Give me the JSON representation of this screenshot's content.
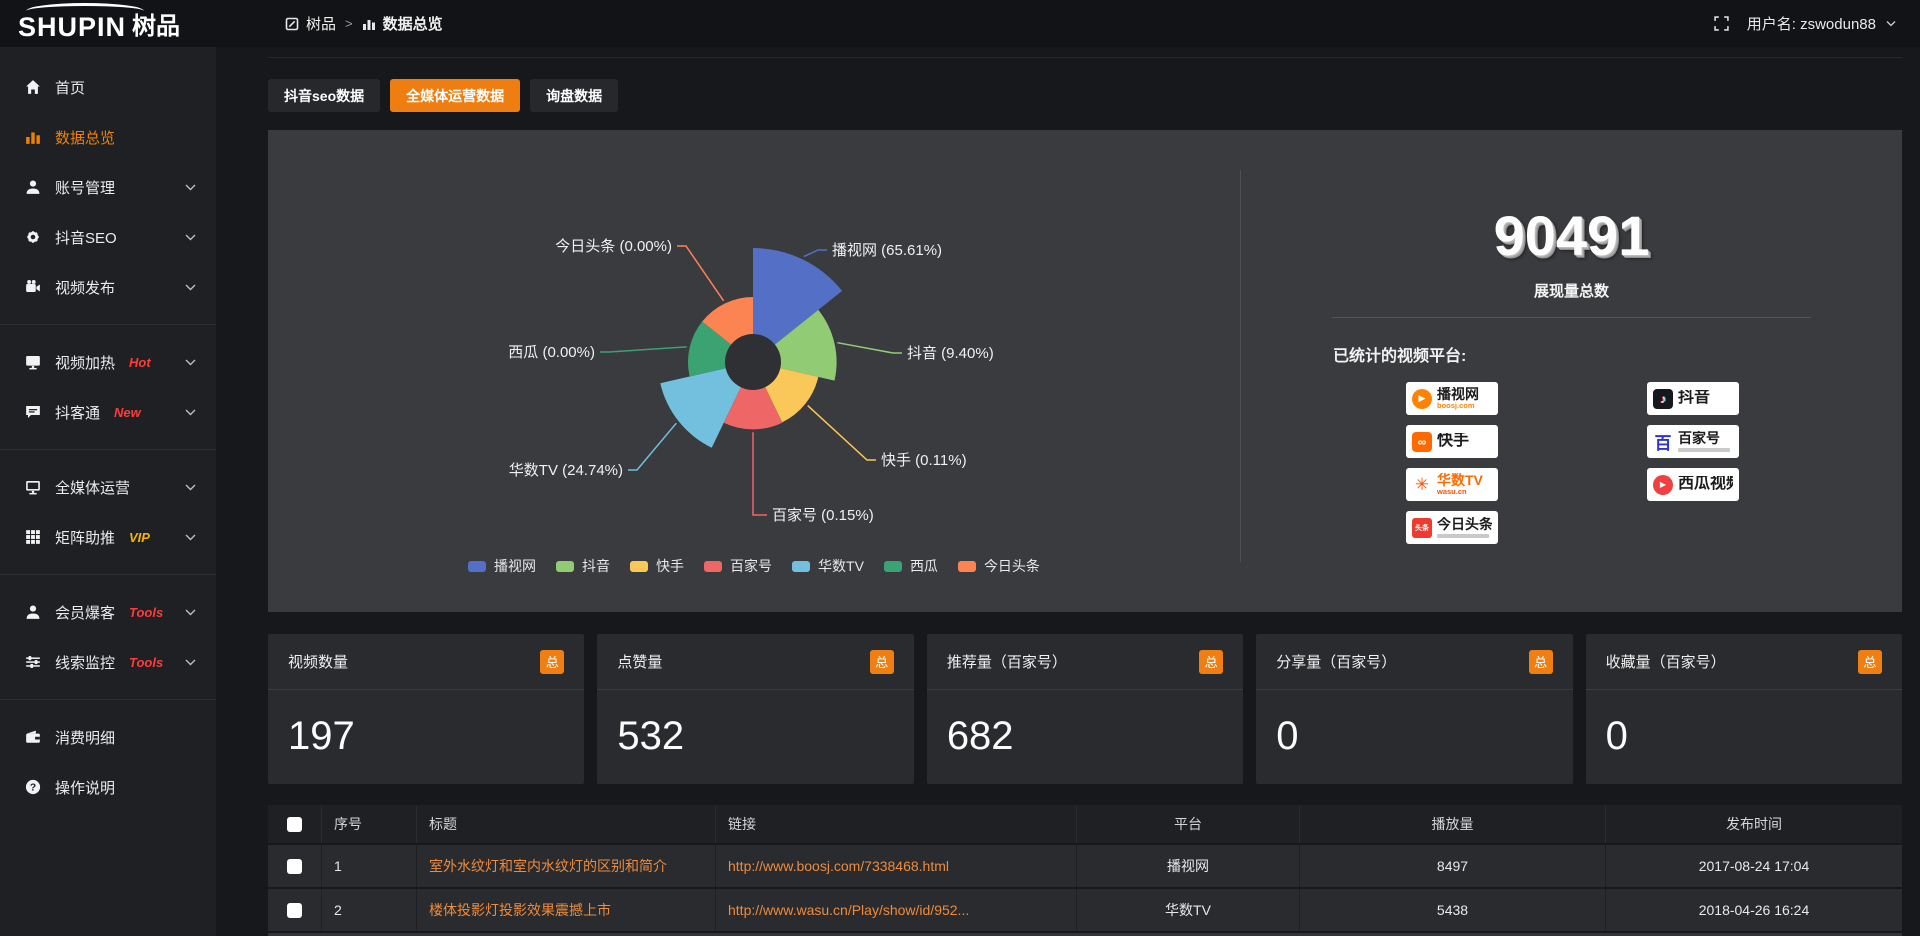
{
  "theme": {
    "accent_orange": "#ee7e12",
    "sidebar_active": "#f08200",
    "link_orange": "#ef8b3a",
    "hot_badge_red": "#ff3b3b",
    "vip_badge_yellow": "#f7b500"
  },
  "topbar": {
    "logo_en": "SHUPIN",
    "logo_cn": "树品",
    "breadcrumb_root": "树品",
    "breadcrumb_sep": ">",
    "breadcrumb_current": "数据总览",
    "username": "用户名: zswodun88"
  },
  "sidebar": {
    "items": [
      {
        "id": "home",
        "icon": "home-icon",
        "label": "首页",
        "chevron": false,
        "active": false
      },
      {
        "id": "data-overview",
        "icon": "bar-chart-icon",
        "label": "数据总览",
        "chevron": false,
        "active": true
      },
      {
        "id": "account-management",
        "icon": "user-icon",
        "label": "账号管理",
        "chevron": true
      },
      {
        "id": "douyin-seo",
        "icon": "gear-icon",
        "label": "抖音SEO",
        "chevron": true
      },
      {
        "id": "video-publish",
        "icon": "video-camera-icon",
        "label": "视频发布",
        "chevron": true,
        "divider_after": true
      },
      {
        "id": "video-heat",
        "icon": "display-icon",
        "label": "视频加热",
        "badge": "Hot",
        "badge_color": "#ff3b3b",
        "chevron": true
      },
      {
        "id": "douketong",
        "icon": "chat-icon",
        "label": "抖客通",
        "badge": "New",
        "badge_color": "#ff3b3b",
        "chevron": true,
        "divider_after": true
      },
      {
        "id": "media-operation",
        "icon": "monitor-icon",
        "label": "全媒体运营",
        "chevron": true
      },
      {
        "id": "matrix-boost",
        "icon": "grid-icon",
        "label": "矩阵助推",
        "badge": "VIP",
        "badge_color": "#f7b500",
        "chevron": true,
        "divider_after": true
      },
      {
        "id": "member-baoke",
        "icon": "user-icon",
        "label": "会员爆客",
        "badge": "Tools",
        "badge_color": "#ff3b3b",
        "chevron": true
      },
      {
        "id": "clue-monitor",
        "icon": "sliders-icon",
        "label": "线索监控",
        "badge": "Tools",
        "badge_color": "#ff3b3b",
        "chevron": true,
        "divider_after": true
      },
      {
        "id": "consumption-detail",
        "icon": "wallet-icon",
        "label": "消费明细",
        "chevron": false
      },
      {
        "id": "instructions",
        "icon": "question-circle-icon",
        "label": "操作说明",
        "chevron": false
      }
    ]
  },
  "tabs": [
    {
      "label": "抖音seo数据",
      "active": false
    },
    {
      "label": "全媒体运营数据",
      "active": true
    },
    {
      "label": "询盘数据",
      "active": false
    }
  ],
  "chart_data": {
    "type": "pie",
    "subtype": "nightingale-rose",
    "legend_position": "bottom",
    "label_format": "{name} ({percent}%)",
    "items": [
      {
        "name": "播视网",
        "percent": 65.61,
        "color": "#5470c6"
      },
      {
        "name": "抖音",
        "percent": 9.4,
        "color": "#91cc75"
      },
      {
        "name": "快手",
        "percent": 0.11,
        "color": "#fac858"
      },
      {
        "name": "百家号",
        "percent": 0.15,
        "color": "#ee6666"
      },
      {
        "name": "华数TV",
        "percent": 24.74,
        "color": "#73c0de"
      },
      {
        "name": "西瓜",
        "percent": 0.0,
        "color": "#3ba272"
      },
      {
        "name": "今日头条",
        "percent": 0.0,
        "color": "#fc8452"
      }
    ]
  },
  "summary": {
    "total": "90491",
    "total_label": "展现量总数",
    "platforms_label": "已统计的视频平台:",
    "platform_columns": [
      [
        {
          "name": "播视网",
          "sub": "boosj.com",
          "icon": "boosj-icon",
          "color": "#ff8300"
        },
        {
          "name": "快手",
          "icon": "kuaishou-icon",
          "color": "#ff6a00"
        },
        {
          "name": "华数TV",
          "sub": "wasu.cn",
          "icon": "wasu-icon",
          "color": "#ff4d00",
          "name_color": "#ff6a00"
        },
        {
          "name": "今日头条",
          "icon": "toutiao-icon",
          "color": "#ed3b2f",
          "sub_bar": true
        }
      ],
      [
        {
          "name": "抖音",
          "icon": "douyin-icon",
          "color": "#16181f"
        },
        {
          "name": "百家号",
          "icon": "baijiahao-icon",
          "color": "#2932e1",
          "sub_bar": true
        },
        {
          "name": "西瓜视频",
          "icon": "xigua-icon",
          "color": "#f04142"
        }
      ]
    ]
  },
  "stat_cards": [
    {
      "label": "视频数量",
      "badge": "总",
      "value": "197"
    },
    {
      "label": "点赞量",
      "badge": "总",
      "value": "532"
    },
    {
      "label": "推荐量（百家号）",
      "badge": "总",
      "value": "682"
    },
    {
      "label": "分享量（百家号）",
      "badge": "总",
      "value": "0"
    },
    {
      "label": "收藏量（百家号）",
      "badge": "总",
      "value": "0"
    }
  ],
  "table": {
    "headers": [
      "序号",
      "标题",
      "链接",
      "平台",
      "播放量",
      "发布时间"
    ],
    "rows": [
      {
        "num": "1",
        "title": "室外水纹灯和室内水纹灯的区别和简介",
        "link": "http://www.boosj.com/7338468.html",
        "platform": "播视网",
        "plays": "8497",
        "time": "2017-08-24 17:04"
      },
      {
        "num": "2",
        "title": "楼体投影灯投影效果震撼上市",
        "link": "http://www.wasu.cn/Play/show/id/952...",
        "platform": "华数TV",
        "plays": "5438",
        "time": "2018-04-26 16:24"
      }
    ]
  }
}
